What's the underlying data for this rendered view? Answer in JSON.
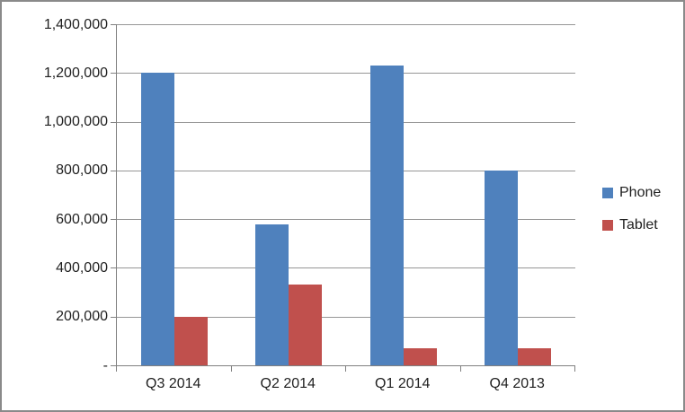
{
  "chart_data": {
    "type": "bar",
    "title": "",
    "xlabel": "",
    "ylabel": "",
    "categories": [
      "Q3 2014",
      "Q2 2014",
      "Q1 2014",
      "Q4 2013"
    ],
    "series": [
      {
        "name": "Phone",
        "color": "#4F81BD",
        "values": [
          1200000,
          580000,
          1230000,
          800000
        ]
      },
      {
        "name": "Tablet",
        "color": "#C0504D",
        "values": [
          200000,
          330000,
          70000,
          70000
        ]
      }
    ],
    "ylim": [
      0,
      1400000
    ],
    "ytick_interval": 200000,
    "ytick_labels": [
      "-",
      "200,000",
      "400,000",
      "600,000",
      "800,000",
      "1,000,000",
      "1,200,000",
      "1,400,000"
    ],
    "grid": true,
    "legend_position": "right"
  },
  "colors": {
    "bar_phone": "#4F81BD",
    "bar_tablet": "#C0504D",
    "gridline": "#969696",
    "axis": "#808080",
    "text": "#1f1f1f",
    "frame_border": "#8a8a8a",
    "background": "#ffffff"
  }
}
